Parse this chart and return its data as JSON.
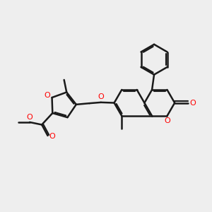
{
  "background_color": "#eeeeee",
  "bond_color": "#1a1a1a",
  "oxygen_color": "#ff0000",
  "line_width": 1.8,
  "figsize": [
    3.0,
    3.0
  ],
  "dpi": 100,
  "xlim": [
    0,
    10
  ],
  "ylim": [
    0,
    10
  ]
}
